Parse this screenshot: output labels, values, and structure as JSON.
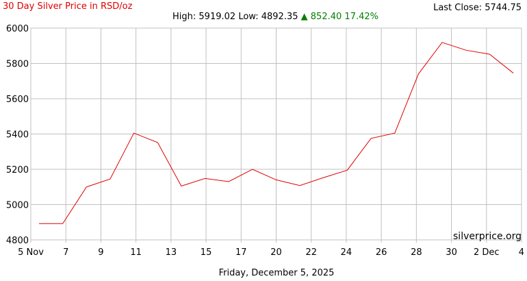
{
  "header": {
    "title": "30 Day Silver Price in RSD/oz",
    "high_label": "High:",
    "high": "5919.02",
    "low_label": "Low:",
    "low": "4892.35",
    "change_arrow": "▲",
    "change": "852.40",
    "change_pct": "17.42%",
    "last_close_label": "Last Close:",
    "last_close": "5744.75"
  },
  "watermark": "silverprice.org",
  "footer_date": "Friday, December 5, 2025",
  "colors": {
    "line": "#e00000",
    "grid": "#c0c0c0",
    "change": "#008000"
  },
  "chart_data": {
    "type": "line",
    "title": "30 Day Silver Price in RSD/oz",
    "xlabel": "",
    "ylabel": "",
    "x_tick_labels": [
      "5 Nov",
      "7",
      "9",
      "11",
      "13",
      "15",
      "17",
      "20",
      "22",
      "24",
      "26",
      "28",
      "30",
      "2 Dec",
      "4"
    ],
    "y_ticks": [
      4800,
      5000,
      5200,
      5400,
      5600,
      5800,
      6000
    ],
    "ylim": [
      4800,
      6000
    ],
    "grid": true,
    "series": [
      {
        "values": [
          4892,
          4892,
          5100,
          5145,
          5405,
          5352,
          5105,
          5148,
          5130,
          5200,
          5140,
          5108,
          5153,
          5195,
          5375,
          5405,
          5740,
          5919,
          5875,
          5852,
          5745
        ]
      }
    ]
  }
}
